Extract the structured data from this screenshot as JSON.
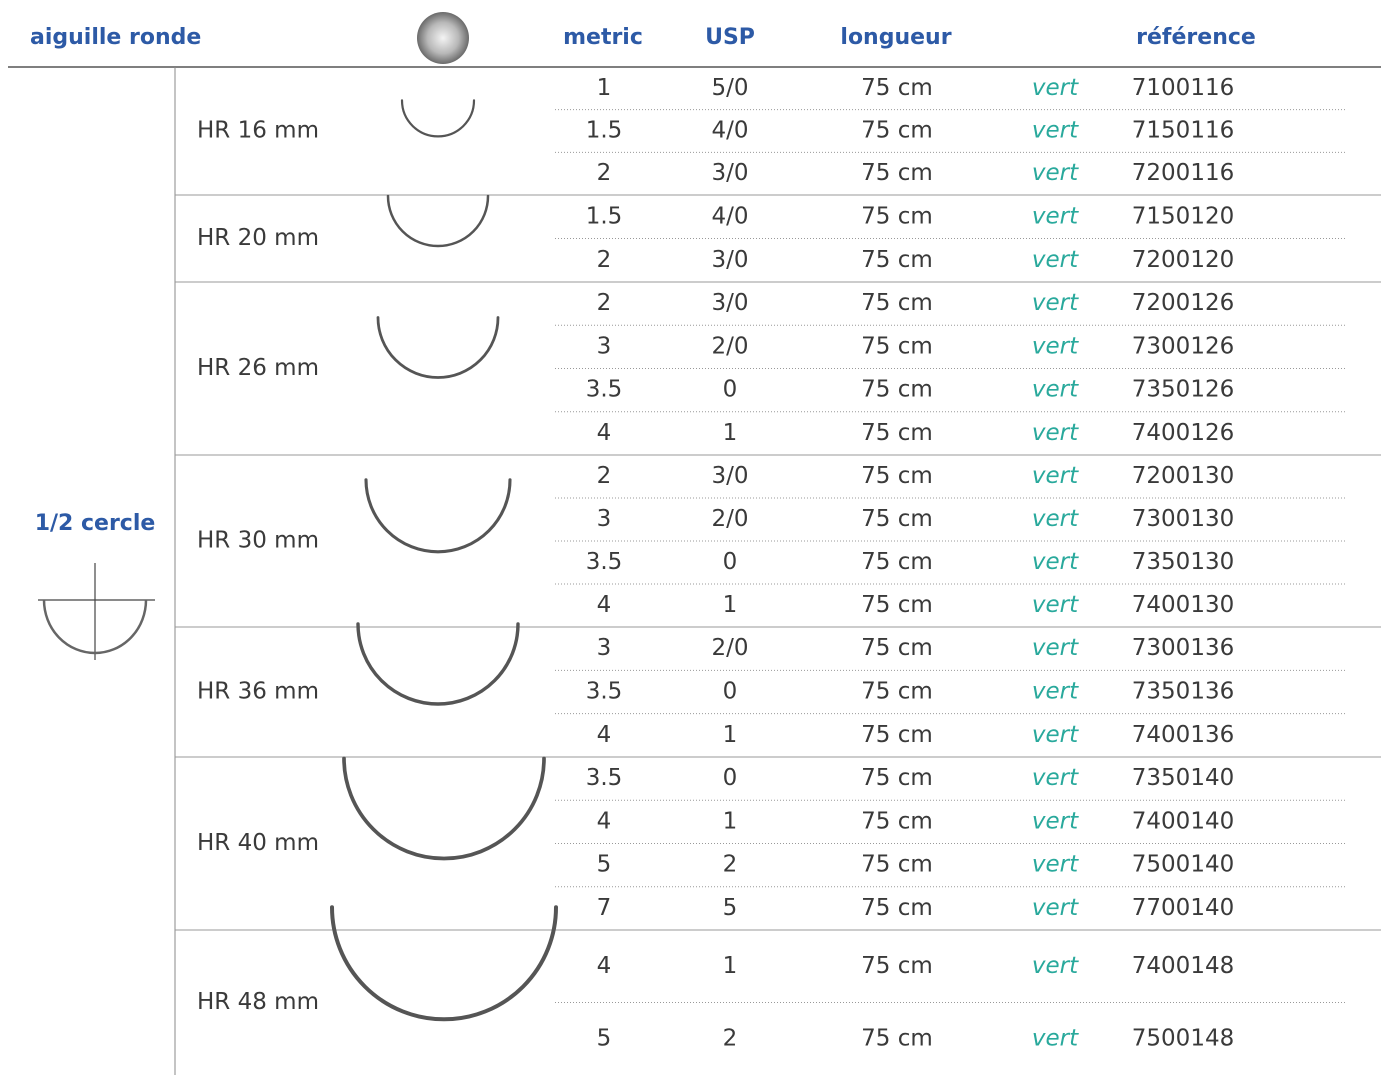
{
  "header": {
    "title": "aiguille ronde",
    "columns": [
      "metric",
      "USP",
      "longueur",
      "référence"
    ]
  },
  "section": {
    "label": "1/2 cercle",
    "groups": [
      {
        "name": "HR 16 mm",
        "rows": [
          [
            "1",
            "5/0",
            "75 cm",
            "vert",
            "7100116"
          ],
          [
            "1.5",
            "4/0",
            "75 cm",
            "vert",
            "7150116"
          ],
          [
            "2",
            "3/0",
            "75 cm",
            "vert",
            "7200116"
          ]
        ]
      },
      {
        "name": "HR 20 mm",
        "rows": [
          [
            "1.5",
            "4/0",
            "75 cm",
            "vert",
            "7150120"
          ],
          [
            "2",
            "3/0",
            "75 cm",
            "vert",
            "7200120"
          ]
        ]
      },
      {
        "name": "HR 26 mm",
        "rows": [
          [
            "2",
            "3/0",
            "75 cm",
            "vert",
            "7200126"
          ],
          [
            "3",
            "2/0",
            "75 cm",
            "vert",
            "7300126"
          ],
          [
            "3.5",
            "0",
            "75 cm",
            "vert",
            "7350126"
          ],
          [
            "4",
            "1",
            "75 cm",
            "vert",
            "7400126"
          ]
        ]
      },
      {
        "name": "HR 30 mm",
        "rows": [
          [
            "2",
            "3/0",
            "75 cm",
            "vert",
            "7200130"
          ],
          [
            "3",
            "2/0",
            "75 cm",
            "vert",
            "7300130"
          ],
          [
            "3.5",
            "0",
            "75 cm",
            "vert",
            "7350130"
          ],
          [
            "4",
            "1",
            "75 cm",
            "vert",
            "7400130"
          ]
        ]
      },
      {
        "name": "HR 36 mm",
        "rows": [
          [
            "3",
            "2/0",
            "75 cm",
            "vert",
            "7300136"
          ],
          [
            "3.5",
            "0",
            "75 cm",
            "vert",
            "7350136"
          ],
          [
            "4",
            "1",
            "75 cm",
            "vert",
            "7400136"
          ]
        ]
      },
      {
        "name": "HR 40 mm",
        "rows": [
          [
            "3.5",
            "0",
            "75 cm",
            "vert",
            "7350140"
          ],
          [
            "4",
            "1",
            "75 cm",
            "vert",
            "7400140"
          ],
          [
            "5",
            "2",
            "75 cm",
            "vert",
            "7500140"
          ],
          [
            "7",
            "5",
            "75 cm",
            "vert",
            "7700140"
          ]
        ]
      },
      {
        "name": "HR 48 mm",
        "rows": [
          [
            "4",
            "1",
            "75 cm",
            "vert",
            "7400148"
          ],
          [
            "5",
            "2",
            "75 cm",
            "vert",
            "7500148"
          ]
        ]
      }
    ]
  }
}
